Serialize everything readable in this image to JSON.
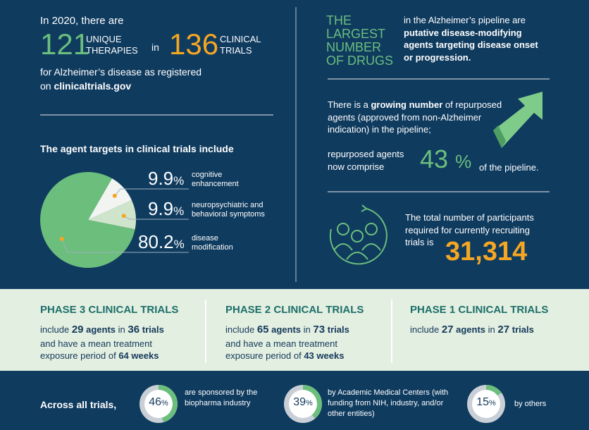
{
  "intro": {
    "lead": "In 2020, there are",
    "therapies": 121,
    "therapies_label": "UNIQUE THERAPIES",
    "joiner": "in",
    "trials": 136,
    "trials_label": "CLINICAL TRIALS",
    "line1": "for Alzheimer’s disease as registered",
    "line2_prefix": "on",
    "line2_link": "clinicaltrials.gov"
  },
  "targets": {
    "title": "The agent targets in clinical trials include",
    "unit": "%",
    "slices": [
      {
        "value": 9.9,
        "label": "cognitive enhancement",
        "color": "#f1f4f1"
      },
      {
        "value": 9.9,
        "label": "neuropsychiatric and behavioral symptoms",
        "color": "#cfe5cb"
      },
      {
        "value": 80.2,
        "label": "disease modification",
        "color": "#6cbe7d"
      }
    ]
  },
  "largest": {
    "heading": "THE LARGEST NUMBER OF DRUGS",
    "text": "in the Alzheimer’s pipeline are",
    "text_bold": "putative disease-modifying agents targeting disease onset or progression."
  },
  "repurposed": {
    "p1_a": "There is a",
    "p1_bold": "growing number",
    "p1_b": "of repurposed agents (approved from non-Alzheimer indication) in the pipeline;",
    "p2": "repurposed agents now comprise",
    "share": 43,
    "unit": "%",
    "p2_end": "of the pipeline."
  },
  "participants": {
    "text": "The total number of participants required for currently recruiting trials is",
    "total": "31,314"
  },
  "phases": [
    {
      "title": "PHASE 3 CLINICAL TRIALS",
      "w1": "include",
      "agents": 29,
      "w2": "agents",
      "w3": "in",
      "trials": 36,
      "w4": "trials",
      "w5": "and have a mean treatment exposure period of",
      "weeks": 64,
      "w6": "weeks"
    },
    {
      "title": "PHASE 2 CLINICAL TRIALS",
      "w1": "include",
      "agents": 65,
      "w2": "agents",
      "w3": "in",
      "trials": 73,
      "w4": "trials",
      "w5": "and have a mean treatment exposure period of",
      "weeks": 43,
      "w6": "weeks"
    },
    {
      "title": "PHASE 1 CLINICAL TRIALS",
      "w1": "include",
      "agents": 27,
      "w2": "agents",
      "w3": "in",
      "trials": 27,
      "w4": "trials"
    }
  ],
  "sponsors": {
    "lead": "Across all trials,",
    "unit": "%",
    "items": [
      {
        "value": 46,
        "label": "are sponsored by the biopharma industry"
      },
      {
        "value": 39,
        "label": "by Academic Medical Centers (with funding from NIH, industry, and/or other entities)"
      },
      {
        "value": 15,
        "label": "by others"
      }
    ]
  }
}
